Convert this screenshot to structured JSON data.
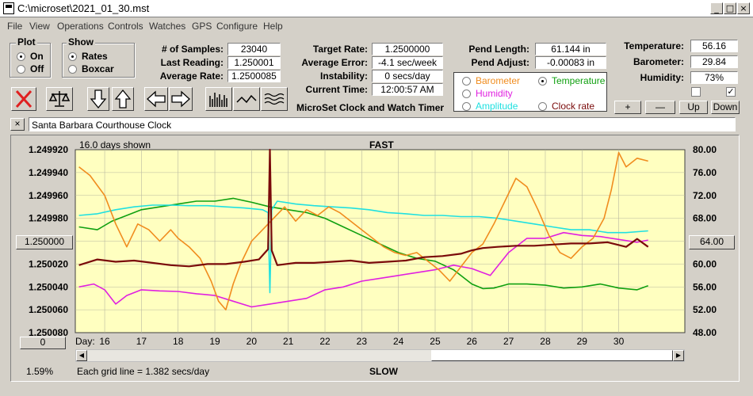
{
  "window": {
    "title": "C:\\microset\\2021_01_30.mst",
    "min": "_",
    "max": "□",
    "close": "×"
  },
  "menu": [
    "File",
    "View",
    "Operations",
    "Controls",
    "Watches",
    "GPS",
    "Configure",
    "Help"
  ],
  "plot_group": {
    "title": "Plot",
    "options": [
      "On",
      "Off"
    ],
    "selected": 0
  },
  "show_group": {
    "title": "Show",
    "options": [
      "Rates",
      "Boxcar"
    ],
    "selected": 0
  },
  "stats": {
    "samples_label": "# of Samples:",
    "samples": "23040",
    "last_label": "Last Reading:",
    "last": "1.250001",
    "avg_label": "Average Rate:",
    "avg": "1.2500085",
    "target_label": "Target Rate:",
    "target": "1.2500000",
    "error_label": "Average Error:",
    "error": "-4.1 sec/week",
    "instab_label": "Instability:",
    "instab": "0 secs/day",
    "time_label": "Current Time:",
    "time": "12:00:57 AM",
    "pendlen_label": "Pend Length:",
    "pendlen": "61.144 in",
    "pendadj_label": "Pend Adjust:",
    "pendadj": "-0.00083 in",
    "temp_label": "Temperature:",
    "temp": "56.16",
    "baro_label": "Barometer:",
    "baro": "29.84",
    "humid_label": "Humidity:",
    "humid": "73%"
  },
  "app_name": "MicroSet Clock and Watch Timer",
  "sensor_options": [
    {
      "label": "Barometer",
      "color": "#f08c1e"
    },
    {
      "label": "Temperature",
      "color": "#10a010",
      "selected": true
    },
    {
      "label": "Humidity",
      "color": "#e020e0"
    },
    {
      "label": "Amplitude",
      "color": "#20e0e0"
    },
    {
      "label": "Clock rate",
      "color": "#7a0a0a"
    }
  ],
  "scale_buttons": {
    "plus": "+",
    "minus": "—",
    "up": "Up",
    "down": "Down"
  },
  "clock_name": "Santa Barbara Courthouse Clock",
  "clear_btn": "×",
  "chart_data": {
    "type": "line",
    "days_shown": "16.0 days shown",
    "top_label": "FAST",
    "bottom_label": "SLOW",
    "x_label": "Day:",
    "xlim": [
      15.2,
      31.8
    ],
    "x_ticks": [
      16,
      17,
      18,
      19,
      20,
      21,
      22,
      23,
      24,
      25,
      26,
      27,
      28,
      29,
      30
    ],
    "y_left_ticks": [
      "1.249920",
      "1.249940",
      "1.249960",
      "1.249980",
      "1.250000",
      "1.250020",
      "1.250040",
      "1.250060",
      "1.250080"
    ],
    "y_left_range": [
      1.24992,
      1.25008
    ],
    "y_right_ticks": [
      "80.00",
      "76.00",
      "72.00",
      "68.00",
      "64.00",
      "60.00",
      "56.00",
      "52.00",
      "48.00"
    ],
    "y_right_range": [
      48,
      80
    ],
    "left_box": "1.250000",
    "right_box": "64.00",
    "bottom_box": "0",
    "grid_note": "Each grid line = 1.382 secs/day",
    "percent": "1.59%",
    "series": [
      {
        "name": "Temperature",
        "color": "#10a010",
        "axis": "right",
        "x": [
          15.3,
          15.8,
          16.2,
          16.6,
          17.0,
          17.5,
          18.0,
          18.5,
          19.0,
          19.5,
          20.0,
          20.5,
          21.0,
          21.5,
          22.0,
          22.5,
          23.0,
          23.5,
          24.0,
          24.5,
          25.0,
          25.5,
          26.0,
          26.3,
          26.6,
          27.0,
          27.5,
          28.0,
          28.5,
          29.0,
          29.5,
          30.0,
          30.5,
          30.8
        ],
        "y": [
          66.5,
          66.0,
          67.5,
          68.5,
          69.5,
          70.0,
          70.5,
          71.0,
          71.0,
          71.5,
          70.8,
          70.0,
          69.5,
          69.0,
          68.0,
          66.5,
          65.0,
          63.5,
          62.0,
          61.0,
          60.5,
          59.0,
          56.5,
          55.7,
          55.8,
          56.5,
          56.5,
          56.3,
          55.8,
          56.0,
          56.5,
          55.8,
          55.5,
          56.2
        ]
      },
      {
        "name": "Humidity",
        "color": "#e020e0",
        "axis": "right",
        "x": [
          15.3,
          15.7,
          16.0,
          16.3,
          16.6,
          17.0,
          17.5,
          18.0,
          18.5,
          19.0,
          19.5,
          20.0,
          20.5,
          21.0,
          21.5,
          22.0,
          22.5,
          23.0,
          23.5,
          24.0,
          24.5,
          25.0,
          25.5,
          26.0,
          26.5,
          27.0,
          27.5,
          28.0,
          28.5,
          29.0,
          29.5,
          30.0,
          30.5,
          30.8
        ],
        "y": [
          56.0,
          56.5,
          55.5,
          53.0,
          54.5,
          55.5,
          55.3,
          55.2,
          54.8,
          54.5,
          53.5,
          52.5,
          53.0,
          53.5,
          54.0,
          55.5,
          56.0,
          57.0,
          57.5,
          58.0,
          58.5,
          59.0,
          59.8,
          59.2,
          58.0,
          62.0,
          64.5,
          64.5,
          65.5,
          65.0,
          64.8,
          64.3,
          63.8,
          64.2
        ]
      },
      {
        "name": "Amplitude",
        "color": "#20e0e0",
        "axis": "right",
        "x": [
          15.3,
          15.8,
          16.3,
          16.8,
          17.3,
          17.8,
          18.3,
          18.8,
          19.3,
          19.8,
          20.3,
          20.45,
          20.5,
          20.55,
          20.7,
          21.2,
          21.7,
          22.2,
          22.7,
          23.2,
          23.7,
          24.2,
          24.7,
          25.2,
          25.7,
          26.2,
          26.7,
          27.2,
          27.7,
          28.2,
          28.7,
          29.2,
          29.7,
          30.2,
          30.8
        ],
        "y": [
          68.5,
          68.8,
          69.5,
          70.0,
          70.3,
          70.3,
          70.2,
          70.2,
          70.0,
          69.8,
          69.5,
          69.0,
          55.0,
          69.5,
          71.0,
          70.5,
          70.2,
          70.0,
          69.8,
          69.5,
          69.0,
          68.8,
          68.5,
          68.5,
          68.3,
          68.3,
          68.0,
          67.5,
          67.0,
          66.5,
          66.0,
          66.0,
          65.5,
          65.5,
          65.8
        ]
      },
      {
        "name": "Barometer",
        "color": "#f08c1e",
        "axis": "right",
        "x": [
          15.3,
          15.6,
          16.0,
          16.3,
          16.6,
          16.9,
          17.2,
          17.5,
          17.8,
          18.0,
          18.3,
          18.6,
          18.9,
          19.1,
          19.3,
          19.5,
          19.7,
          20.0,
          20.3,
          20.6,
          20.9,
          21.2,
          21.5,
          21.8,
          22.1,
          22.4,
          22.7,
          23.0,
          23.3,
          23.6,
          23.9,
          24.2,
          24.5,
          24.8,
          25.1,
          25.4,
          25.7,
          26.0,
          26.3,
          26.6,
          26.9,
          27.2,
          27.5,
          27.8,
          28.1,
          28.4,
          28.7,
          29.0,
          29.3,
          29.6,
          29.8,
          30.0,
          30.2,
          30.5,
          30.8
        ],
        "y": [
          77.0,
          75.5,
          72.0,
          67.0,
          63.0,
          67.0,
          66.0,
          64.0,
          66.0,
          64.5,
          63.0,
          61.0,
          57.0,
          53.5,
          52.0,
          56.5,
          60.0,
          64.0,
          66.0,
          68.0,
          70.0,
          67.5,
          69.5,
          68.5,
          70.0,
          69.0,
          67.5,
          66.0,
          64.5,
          63.0,
          62.0,
          61.5,
          62.0,
          60.5,
          59.0,
          57.0,
          59.5,
          62.0,
          63.5,
          67.0,
          71.0,
          75.0,
          73.5,
          69.5,
          65.0,
          62.0,
          61.0,
          63.0,
          64.5,
          68.0,
          73.0,
          79.5,
          77.0,
          78.5,
          78.0
        ]
      },
      {
        "name": "Clock rate",
        "color": "#7a0a0a",
        "axis": "left",
        "x": [
          15.3,
          15.8,
          16.3,
          16.8,
          17.3,
          17.8,
          18.3,
          18.8,
          19.3,
          19.8,
          20.2,
          20.45,
          20.5,
          20.55,
          20.7,
          21.2,
          21.7,
          22.2,
          22.7,
          23.2,
          23.7,
          24.2,
          24.7,
          25.2,
          25.7,
          26.0,
          26.3,
          26.7,
          27.2,
          27.7,
          28.2,
          28.7,
          29.2,
          29.7,
          30.2,
          30.5,
          30.8
        ],
        "y": [
          1.250021,
          1.250016,
          1.250018,
          1.250017,
          1.250019,
          1.250021,
          1.250022,
          1.25002,
          1.25002,
          1.250018,
          1.250016,
          1.250007,
          1.249914,
          1.250008,
          1.250021,
          1.250019,
          1.250019,
          1.250018,
          1.250017,
          1.250019,
          1.250018,
          1.250017,
          1.250014,
          1.250013,
          1.250011,
          1.250008,
          1.250006,
          1.250005,
          1.250004,
          1.250004,
          1.250003,
          1.250002,
          1.250002,
          1.250001,
          1.250005,
          1.249998,
          1.250005
        ]
      }
    ]
  }
}
